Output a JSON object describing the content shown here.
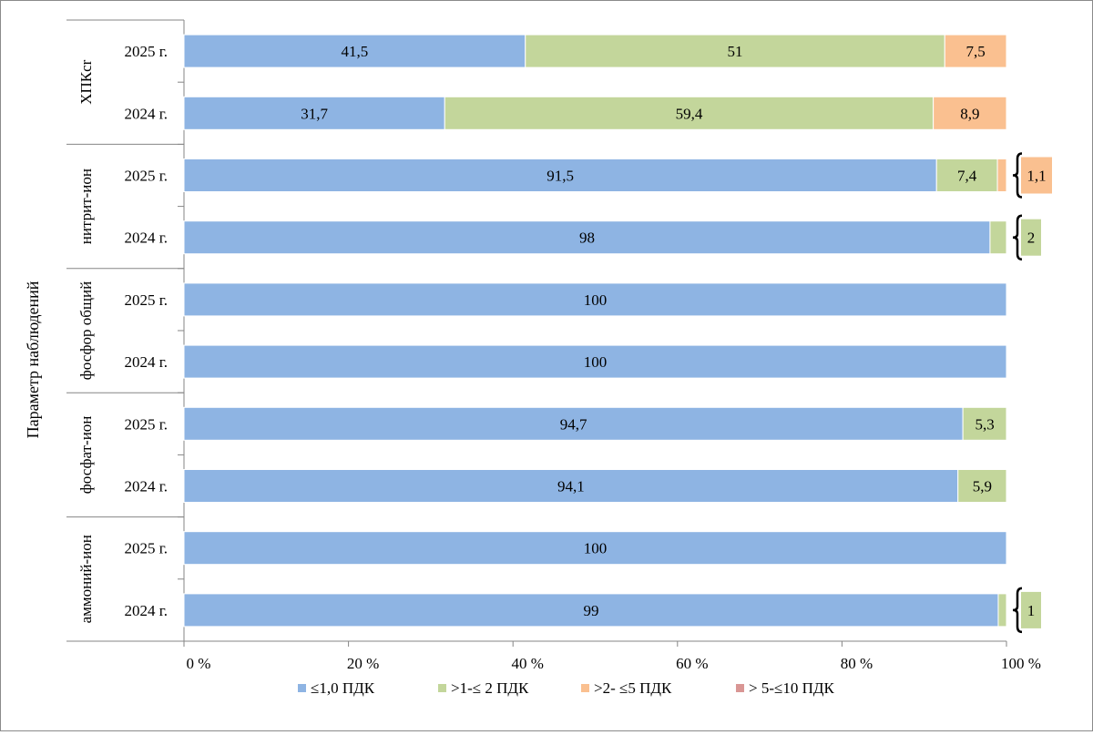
{
  "chart_data": {
    "type": "bar",
    "orientation": "horizontal",
    "stacked": true,
    "ylabel": "Параметр наблюдений",
    "xlim": [
      0,
      100
    ],
    "x_ticks": [
      "0 %",
      "20 %",
      "40 %",
      "60 %",
      "80 %",
      "100 %"
    ],
    "legend_position": "bottom",
    "legend": [
      {
        "label": "≤1,0 ПДК",
        "color": "#8eb4e3"
      },
      {
        "label": ">1-≤ 2 ПДК",
        "color": "#c3d69b"
      },
      {
        "label": ">2- ≤5 ПДК",
        "color": "#fac090"
      },
      {
        "label": "> 5-≤10 ПДК",
        "color": "#d99694"
      }
    ],
    "groups": [
      {
        "label": "ХПКcr",
        "rows": [
          {
            "label": "2025 г.",
            "values": [
              41.5,
              51,
              7.5,
              0
            ],
            "labels": [
              "41,5",
              "51",
              "7,5",
              ""
            ]
          },
          {
            "label": "2024 г.",
            "values": [
              31.7,
              59.4,
              8.9,
              0
            ],
            "labels": [
              "31,7",
              "59,4",
              "8,9",
              ""
            ]
          }
        ]
      },
      {
        "label": "нитрит-ион",
        "rows": [
          {
            "label": "2025 г.",
            "values": [
              91.5,
              7.4,
              1.1,
              0
            ],
            "labels": [
              "91,5",
              "7,4",
              "1,1",
              ""
            ]
          },
          {
            "label": "2024 г.",
            "values": [
              98,
              2,
              0,
              0
            ],
            "labels": [
              "98",
              "2",
              "",
              ""
            ]
          }
        ]
      },
      {
        "label": "фосфор общий",
        "rows": [
          {
            "label": "2025 г.",
            "values": [
              100,
              0,
              0,
              0
            ],
            "labels": [
              "100",
              "",
              "",
              ""
            ]
          },
          {
            "label": "2024 г.",
            "values": [
              100,
              0,
              0,
              0
            ],
            "labels": [
              "100",
              "",
              "",
              ""
            ]
          }
        ]
      },
      {
        "label": "фосфат-ион",
        "rows": [
          {
            "label": "2025 г.",
            "values": [
              94.7,
              5.3,
              0,
              0
            ],
            "labels": [
              "94,7",
              "5,3",
              "",
              ""
            ]
          },
          {
            "label": "2024 г.",
            "values": [
              94.1,
              5.9,
              0,
              0
            ],
            "labels": [
              "94,1",
              "5,9",
              "",
              ""
            ]
          }
        ]
      },
      {
        "label": "аммоний-ион",
        "rows": [
          {
            "label": "2025 г.",
            "values": [
              100,
              0,
              0,
              0
            ],
            "labels": [
              "100",
              "",
              "",
              ""
            ]
          },
          {
            "label": "2024 г.",
            "values": [
              99,
              1,
              0,
              0
            ],
            "labels": [
              "99",
              "1",
              "",
              ""
            ]
          }
        ]
      }
    ]
  }
}
